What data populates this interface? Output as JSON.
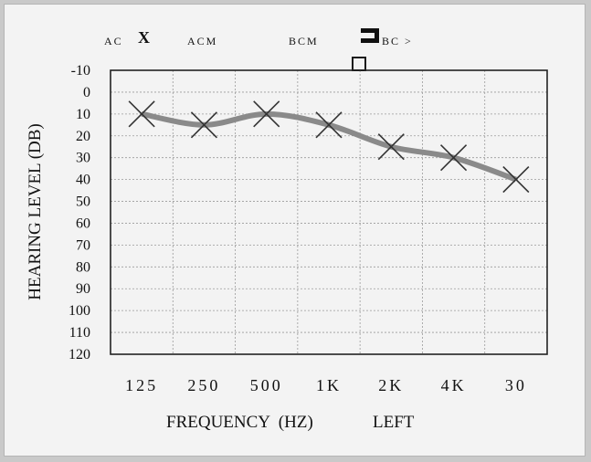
{
  "legend": {
    "ac_label": "AC",
    "ac_symbol": "X",
    "acm_label": "ACM",
    "bcm_label": "BCM",
    "bc_label": "BC >"
  },
  "chart_data": {
    "type": "line",
    "xlabel": "FREQUENCY  (HZ)",
    "ear_label": "LEFT",
    "ylabel": "HEARING LEVEL (DB)",
    "categories": [
      "125",
      "250",
      "500",
      "1K",
      "2K",
      "4K",
      "30"
    ],
    "y_ticks": [
      -10,
      0,
      10,
      20,
      30,
      40,
      50,
      60,
      70,
      80,
      90,
      100,
      110,
      120
    ],
    "ylim": [
      -10,
      120
    ],
    "y_inverted": true,
    "grid": true,
    "series": [
      {
        "marker": "X",
        "color": "#8a8a8a",
        "values": [
          10,
          15,
          10,
          15,
          25,
          30,
          40
        ]
      }
    ]
  }
}
